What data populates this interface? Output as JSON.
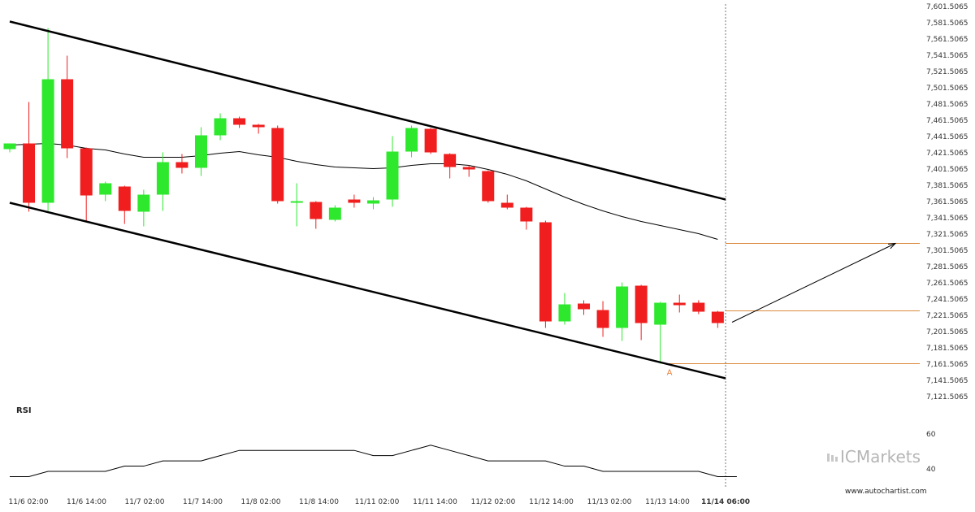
{
  "chart_data": {
    "type": "candlestick",
    "x_labels": [
      "11/6 02:00",
      "11/6 14:00",
      "11/7 02:00",
      "11/7 14:00",
      "11/8 02:00",
      "11/8 14:00",
      "11/11 02:00",
      "11/11 14:00",
      "11/12 02:00",
      "11/12 14:00",
      "11/13 02:00",
      "11/13 14:00",
      "11/14 06:00"
    ],
    "y_ticks": [
      "7,601.5065",
      "7,581.5065",
      "7,561.5065",
      "7,541.5065",
      "7,521.5065",
      "7,501.5065",
      "7,481.5065",
      "7,461.5065",
      "7,441.5065",
      "7,421.5065",
      "7,401.5065",
      "7,381.5065",
      "7,361.5065",
      "7,341.5065",
      "7,321.5065",
      "7,301.5065",
      "7,281.5065",
      "7,261.5065",
      "7,241.5065",
      "7,221.5065",
      "7,201.5065",
      "7,181.5065",
      "7,161.5065",
      "7,141.5065",
      "7,121.5065"
    ],
    "ylim": [
      7121.5065,
      7601.5065
    ],
    "candles": [
      {
        "o": 7426,
        "h": 7433,
        "l": 7422,
        "c": 7433
      },
      {
        "o": 7433,
        "h": 7484,
        "l": 7349,
        "c": 7360
      },
      {
        "o": 7360,
        "h": 7575,
        "l": 7350,
        "c": 7512
      },
      {
        "o": 7512,
        "h": 7541,
        "l": 7415,
        "c": 7427
      },
      {
        "o": 7427,
        "h": 7428,
        "l": 7338,
        "c": 7369
      },
      {
        "o": 7370,
        "h": 7386,
        "l": 7362,
        "c": 7384
      },
      {
        "o": 7380,
        "h": 7381,
        "l": 7334,
        "c": 7350
      },
      {
        "o": 7349,
        "h": 7376,
        "l": 7331,
        "c": 7370
      },
      {
        "o": 7370,
        "h": 7422,
        "l": 7350,
        "c": 7410
      },
      {
        "o": 7410,
        "h": 7420,
        "l": 7396,
        "c": 7403
      },
      {
        "o": 7403,
        "h": 7453,
        "l": 7393,
        "c": 7443
      },
      {
        "o": 7443,
        "h": 7470,
        "l": 7437,
        "c": 7464
      },
      {
        "o": 7464,
        "h": 7466,
        "l": 7452,
        "c": 7456
      },
      {
        "o": 7456,
        "h": 7457,
        "l": 7445,
        "c": 7453
      },
      {
        "o": 7452,
        "h": 7455,
        "l": 7359,
        "c": 7362
      },
      {
        "o": 7362,
        "h": 7384,
        "l": 7331,
        "c": 7362
      },
      {
        "o": 7361,
        "h": 7362,
        "l": 7328,
        "c": 7340
      },
      {
        "o": 7339,
        "h": 7357,
        "l": 7337,
        "c": 7354
      },
      {
        "o": 7364,
        "h": 7370,
        "l": 7354,
        "c": 7360
      },
      {
        "o": 7359,
        "h": 7367,
        "l": 7352,
        "c": 7363
      },
      {
        "o": 7364,
        "h": 7442,
        "l": 7355,
        "c": 7423
      },
      {
        "o": 7423,
        "h": 7455,
        "l": 7416,
        "c": 7452
      },
      {
        "o": 7451,
        "h": 7452,
        "l": 7420,
        "c": 7422
      },
      {
        "o": 7420,
        "h": 7421,
        "l": 7390,
        "c": 7404
      },
      {
        "o": 7404,
        "h": 7406,
        "l": 7392,
        "c": 7401
      },
      {
        "o": 7399,
        "h": 7400,
        "l": 7360,
        "c": 7362
      },
      {
        "o": 7360,
        "h": 7370,
        "l": 7352,
        "c": 7354
      },
      {
        "o": 7354,
        "h": 7355,
        "l": 7327,
        "c": 7337
      },
      {
        "o": 7336,
        "h": 7338,
        "l": 7206,
        "c": 7214
      },
      {
        "o": 7214,
        "h": 7249,
        "l": 7210,
        "c": 7235
      },
      {
        "o": 7236,
        "h": 7240,
        "l": 7222,
        "c": 7229
      },
      {
        "o": 7228,
        "h": 7239,
        "l": 7195,
        "c": 7206
      },
      {
        "o": 7206,
        "h": 7262,
        "l": 7190,
        "c": 7257
      },
      {
        "o": 7258,
        "h": 7259,
        "l": 7191,
        "c": 7212
      },
      {
        "o": 7210,
        "h": 7238,
        "l": 7162,
        "c": 7237
      },
      {
        "o": 7237,
        "h": 7247,
        "l": 7225,
        "c": 7234
      },
      {
        "o": 7237,
        "h": 7240,
        "l": 7223,
        "c": 7226
      },
      {
        "o": 7226,
        "h": 7227,
        "l": 7206,
        "c": 7212
      }
    ],
    "moving_average": [
      7431,
      7432,
      7433,
      7431,
      7427,
      7425,
      7420,
      7416,
      7416,
      7416,
      7418,
      7421,
      7423,
      7419,
      7416,
      7411,
      7407,
      7404,
      7403,
      7402,
      7403,
      7406,
      7408,
      7408,
      7406,
      7401,
      7395,
      7387,
      7377,
      7367,
      7358,
      7350,
      7343,
      7337,
      7332,
      7327,
      7322,
      7315
    ],
    "channel_upper": [
      [
        0,
        7583
      ],
      [
        38,
        7364
      ]
    ],
    "channel_lower": [
      [
        0,
        7360
      ],
      [
        38,
        7144
      ]
    ],
    "levels": [
      7162,
      7227,
      7310
    ],
    "projection_target": 7310,
    "pattern_marker": "A",
    "rsi": {
      "label": "RSI",
      "ticks": [
        "60",
        "40"
      ],
      "ylim": [
        33,
        70
      ],
      "values": [
        37,
        37,
        40,
        40,
        40,
        40,
        43,
        43,
        46,
        46,
        46,
        49,
        52,
        52,
        52,
        52,
        52,
        52,
        52,
        49,
        49,
        52,
        55,
        52,
        49,
        46,
        46,
        46,
        46,
        43,
        43,
        40,
        40,
        40,
        40,
        40,
        40,
        37,
        37
      ]
    },
    "colors": {
      "up": "#2ee82e",
      "down": "#f01e1e",
      "channel": "#000000",
      "ma": "#000000",
      "level": "#d98a3d",
      "marker": "#e8823a"
    }
  },
  "branding": {
    "logo_text": "ICMarkets",
    "watermark_url": "www.autochartist.com"
  }
}
